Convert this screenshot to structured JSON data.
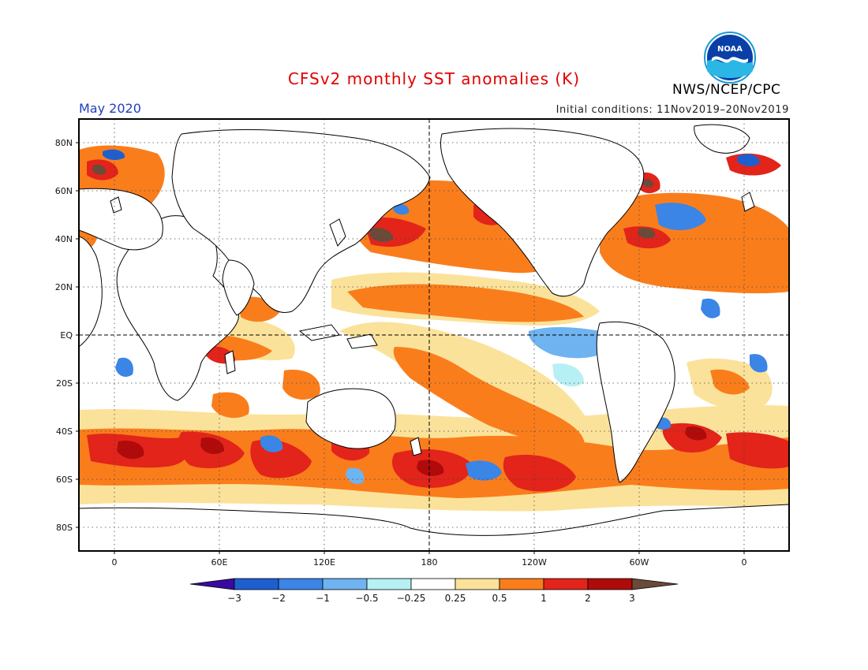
{
  "title": "CFSv2 monthly SST anomalies (K)",
  "agency": "NWS/NCEP/CPC",
  "logo_text": "NOAA",
  "valid_month": "May 2020",
  "initial_conditions": "Initial conditions: 11Nov2019–20Nov2019",
  "map": {
    "lat_ticks": [
      "80N",
      "60N",
      "40N",
      "20N",
      "EQ",
      "20S",
      "40S",
      "60S",
      "80S"
    ],
    "lon_ticks": [
      "0",
      "60E",
      "120E",
      "180",
      "120W",
      "60W",
      "0"
    ]
  },
  "colorbar": {
    "labels": [
      "−3",
      "−2",
      "−1",
      "−0.5",
      "−0.25",
      "0.25",
      "0.5",
      "1",
      "2",
      "3"
    ],
    "colors": {
      "lt_m3": "#3a0aa0",
      "m3_m2": "#1e5fd0",
      "m2_m1": "#3a85e6",
      "m1_m05": "#6fb3f0",
      "m05_m025": "#b7f0f4",
      "m025_025": "#ffffff",
      "p025_05": "#fbe29a",
      "p05_1": "#fa7d1c",
      "p1_2": "#e2241b",
      "p2_3": "#b00b0b",
      "gt_3": "#6b4a3a"
    }
  }
}
